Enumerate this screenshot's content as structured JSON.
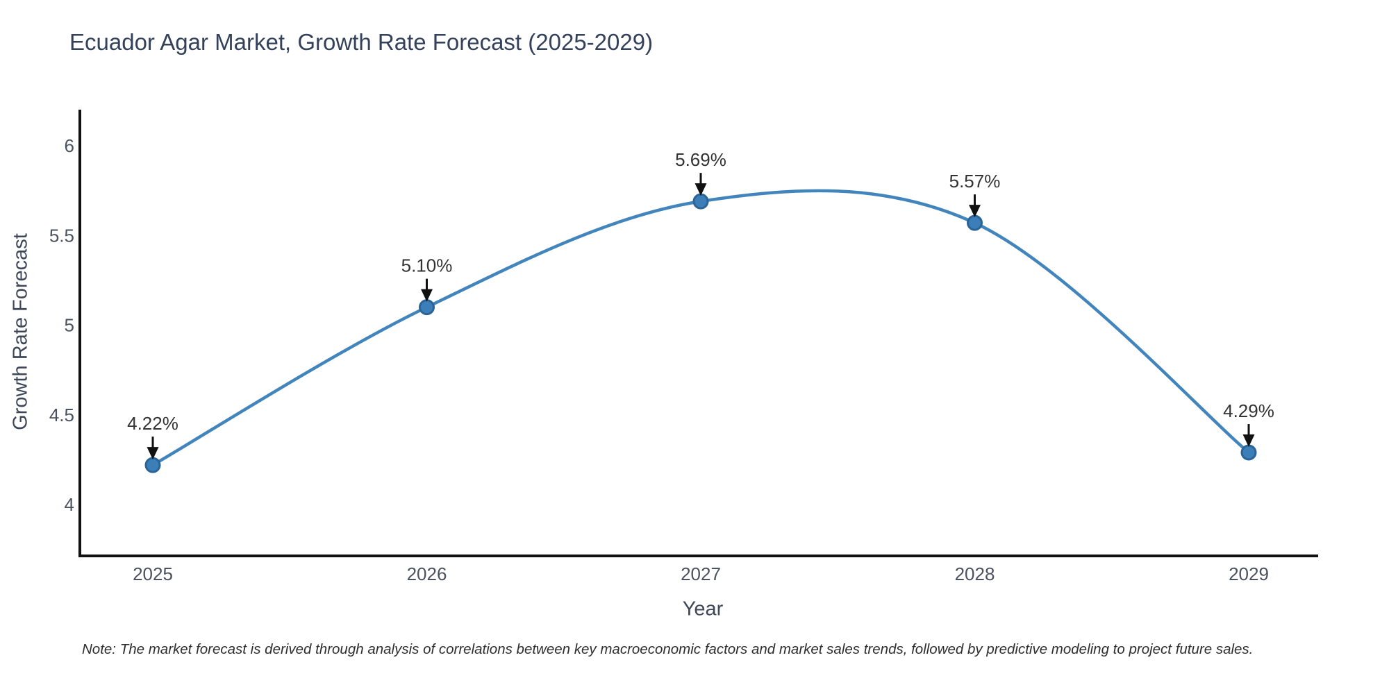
{
  "chart_data": {
    "type": "line",
    "title": "Ecuador Agar Market, Growth Rate Forecast (2025-2029)",
    "xlabel": "Year",
    "ylabel": "Growth Rate Forecast",
    "x": [
      2025,
      2026,
      2027,
      2028,
      2029
    ],
    "series": [
      {
        "name": "Growth Rate Forecast",
        "values": [
          4.22,
          5.1,
          5.69,
          5.57,
          4.29
        ]
      }
    ],
    "point_labels": [
      "4.22%",
      "5.10%",
      "5.69%",
      "5.57%",
      "4.29%"
    ],
    "xtick_labels": [
      "2025",
      "2026",
      "2027",
      "2028",
      "2029"
    ],
    "yticks": [
      4,
      4.5,
      5,
      5.5,
      6
    ],
    "ytick_labels": [
      "4",
      "4.5",
      "5",
      "5.5",
      "6"
    ],
    "ylim": [
      3.71,
      6.19
    ],
    "grid": false,
    "legend_position": "none",
    "smooth": true,
    "annotation_style": "value label above point with downward black arrow",
    "colors": {
      "line": "#4285bc",
      "marker_fill": "#3c7eb8",
      "marker_edge": "#2b6496",
      "annotation_arrow": "#111111",
      "annotation_text": "#333333",
      "axis_spine": "#111111",
      "tick_label": "#4a5260",
      "title": "#33415a",
      "axis_label": "#3d4757"
    }
  },
  "note": "Note: The market forecast is derived through analysis of correlations between key macroeconomic factors and market sales trends, followed by predictive modeling to project future sales."
}
